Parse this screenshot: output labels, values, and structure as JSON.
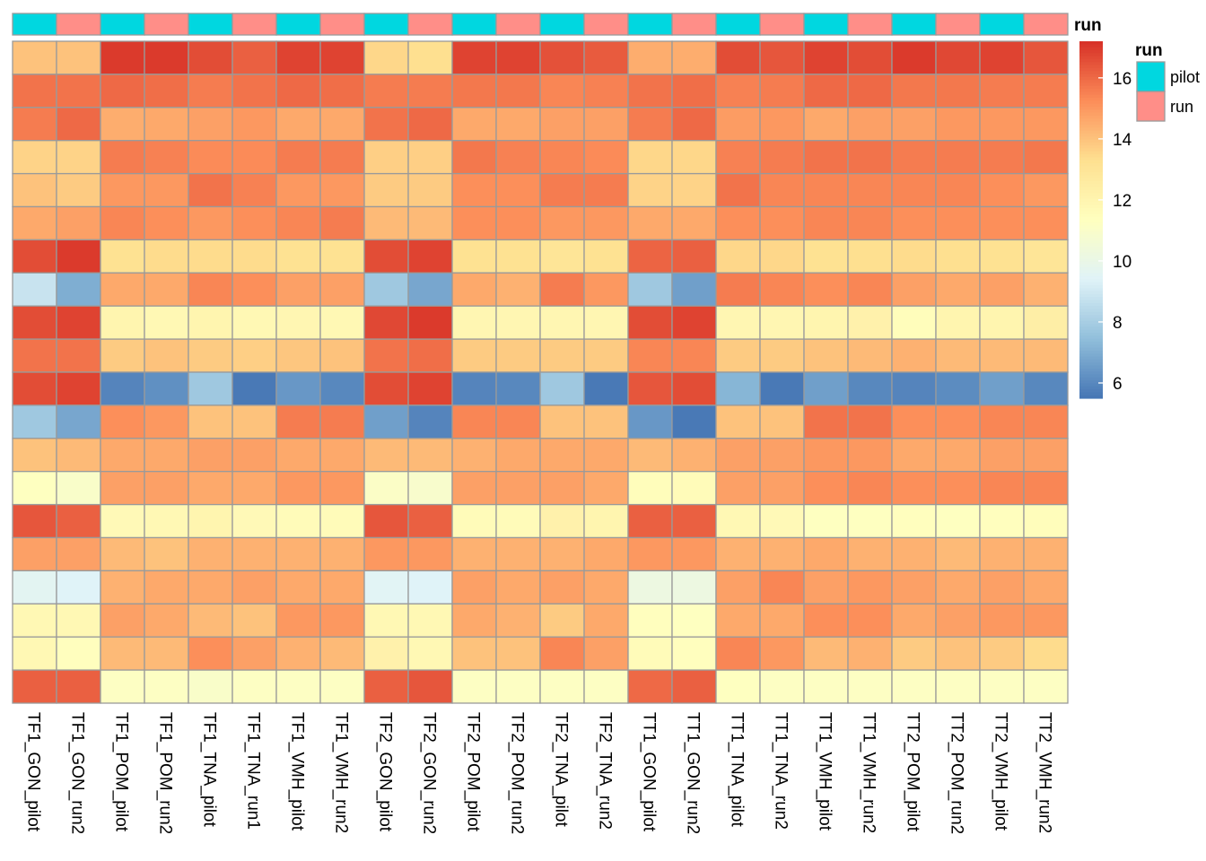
{
  "chart_data": {
    "type": "heatmap",
    "columns": [
      "TF1_GON_pilot",
      "TF1_GON_run2",
      "TF1_POM_pilot",
      "TF1_POM_run2",
      "TF1_TNA_pilot",
      "TF1_TNA_run1",
      "TF1_VMH_pilot",
      "TF1_VMH_run2",
      "TF2_GON_pilot",
      "TF2_GON_run2",
      "TF2_POM_pilot",
      "TF2_POM_run2",
      "TF2_TNA_pilot",
      "TF2_TNA_run2",
      "TT1_GON_pilot",
      "TT1_GON_run2",
      "TT1_TNA_pilot",
      "TT1_TNA_run2",
      "TT1_VMH_pilot",
      "TT1_VMH_run2",
      "TT2_POM_pilot",
      "TT2_POM_run2",
      "TT2_VMH_pilot",
      "TT2_VMH_run2"
    ],
    "column_annotation": {
      "name": "run",
      "values": [
        "pilot",
        "run",
        "pilot",
        "run",
        "pilot",
        "run",
        "pilot",
        "run",
        "pilot",
        "run",
        "pilot",
        "run",
        "pilot",
        "run",
        "pilot",
        "run",
        "pilot",
        "run",
        "pilot",
        "run",
        "pilot",
        "run",
        "pilot",
        "run"
      ],
      "legend": {
        "title": "run",
        "entries": [
          {
            "label": "pilot",
            "color": "#00D7E0"
          },
          {
            "label": "run",
            "color": "#FF8E88"
          }
        ]
      }
    },
    "matrix": [
      [
        14.0,
        14.0,
        17.0,
        17.0,
        16.6,
        16.2,
        16.8,
        16.8,
        13.5,
        13.3,
        16.8,
        16.8,
        16.5,
        16.3,
        14.5,
        14.5,
        16.6,
        16.4,
        16.8,
        16.6,
        17.0,
        16.7,
        16.8,
        16.4
      ],
      [
        15.8,
        15.8,
        16.0,
        15.9,
        15.6,
        15.8,
        16.0,
        15.9,
        15.6,
        15.6,
        15.7,
        15.7,
        15.4,
        15.5,
        15.8,
        15.9,
        15.5,
        15.6,
        16.0,
        16.0,
        15.7,
        15.7,
        15.6,
        15.6
      ],
      [
        15.6,
        16.0,
        14.5,
        14.6,
        14.8,
        15.0,
        14.6,
        14.6,
        15.8,
        16.0,
        14.6,
        14.6,
        14.8,
        14.8,
        15.6,
        16.0,
        14.9,
        15.0,
        14.6,
        14.8,
        14.8,
        15.0,
        15.0,
        15.0
      ],
      [
        13.6,
        13.6,
        15.6,
        15.5,
        15.3,
        15.3,
        15.6,
        15.6,
        13.7,
        13.7,
        15.7,
        15.5,
        15.4,
        15.3,
        13.5,
        13.5,
        15.5,
        15.6,
        15.8,
        15.8,
        15.6,
        15.6,
        15.6,
        15.7
      ],
      [
        14.0,
        13.8,
        15.0,
        15.0,
        15.8,
        15.5,
        15.0,
        15.0,
        13.8,
        13.8,
        15.2,
        15.2,
        15.6,
        15.6,
        13.6,
        13.6,
        15.8,
        15.4,
        15.4,
        15.4,
        15.4,
        15.4,
        15.2,
        15.0
      ],
      [
        14.6,
        14.8,
        15.4,
        15.2,
        15.0,
        15.2,
        15.4,
        15.6,
        14.2,
        14.2,
        15.2,
        15.2,
        15.0,
        15.0,
        14.6,
        14.6,
        15.2,
        15.2,
        15.4,
        15.4,
        15.2,
        15.2,
        15.2,
        15.2
      ],
      [
        16.6,
        17.0,
        13.2,
        13.4,
        13.4,
        13.4,
        13.2,
        13.2,
        16.6,
        16.8,
        13.2,
        13.2,
        13.0,
        13.2,
        16.1,
        16.2,
        13.5,
        13.5,
        13.2,
        13.3,
        13.4,
        13.3,
        13.2,
        13.0
      ],
      [
        8.8,
        7.0,
        14.6,
        14.6,
        15.4,
        15.2,
        14.8,
        14.8,
        7.8,
        6.8,
        14.6,
        14.4,
        15.6,
        15.0,
        7.8,
        6.6,
        15.6,
        15.4,
        15.2,
        15.4,
        14.8,
        14.6,
        14.8,
        14.4
      ],
      [
        16.6,
        16.8,
        12.0,
        11.8,
        12.0,
        11.8,
        11.9,
        11.8,
        16.7,
        17.0,
        11.9,
        11.9,
        11.9,
        11.9,
        16.6,
        16.8,
        11.9,
        11.9,
        12.0,
        12.2,
        11.5,
        12.0,
        12.0,
        12.4
      ],
      [
        15.8,
        15.8,
        13.8,
        14.0,
        13.8,
        13.7,
        13.9,
        14.0,
        15.8,
        15.9,
        13.8,
        13.8,
        13.8,
        13.8,
        15.4,
        15.4,
        13.8,
        13.8,
        14.0,
        14.2,
        14.4,
        14.2,
        14.2,
        14.2
      ],
      [
        16.6,
        16.8,
        5.9,
        6.2,
        7.8,
        5.6,
        6.4,
        6.0,
        16.6,
        16.8,
        5.9,
        6.0,
        7.8,
        5.6,
        16.4,
        16.6,
        7.2,
        5.6,
        6.6,
        6.0,
        5.9,
        6.1,
        6.6,
        6.0
      ],
      [
        7.8,
        6.8,
        15.2,
        15.0,
        14.0,
        14.0,
        15.6,
        15.6,
        6.6,
        5.9,
        15.4,
        15.4,
        14.0,
        14.0,
        6.4,
        5.6,
        14.0,
        14.0,
        15.8,
        15.8,
        15.2,
        15.2,
        15.4,
        15.4
      ],
      [
        14.0,
        14.2,
        14.6,
        14.6,
        14.8,
        14.8,
        14.6,
        14.6,
        14.2,
        14.2,
        14.4,
        14.6,
        14.6,
        14.6,
        14.2,
        14.4,
        14.8,
        14.8,
        15.0,
        15.0,
        14.6,
        14.6,
        14.8,
        14.8
      ],
      [
        11.3,
        11.0,
        14.8,
        14.8,
        14.6,
        14.6,
        15.0,
        15.0,
        11.1,
        10.9,
        14.8,
        14.8,
        14.8,
        14.6,
        11.5,
        11.6,
        14.8,
        14.8,
        15.2,
        15.4,
        15.2,
        15.2,
        15.4,
        15.4
      ],
      [
        16.4,
        16.2,
        11.7,
        11.8,
        12.0,
        11.7,
        11.6,
        11.6,
        16.4,
        16.2,
        11.6,
        11.6,
        12.2,
        12.0,
        16.2,
        16.2,
        11.8,
        11.7,
        11.3,
        11.3,
        11.4,
        11.3,
        11.4,
        11.5
      ],
      [
        14.8,
        14.8,
        14.2,
        14.0,
        14.4,
        14.4,
        14.4,
        14.4,
        15.0,
        15.0,
        14.4,
        14.4,
        14.4,
        14.6,
        15.0,
        15.0,
        14.4,
        14.4,
        14.6,
        14.4,
        14.4,
        14.2,
        14.4,
        14.4
      ],
      [
        9.6,
        9.4,
        14.4,
        14.6,
        14.6,
        14.8,
        14.6,
        14.6,
        9.5,
        9.4,
        14.8,
        14.6,
        14.8,
        14.6,
        10.2,
        10.2,
        14.8,
        15.4,
        14.8,
        15.0,
        14.8,
        14.6,
        14.8,
        14.6
      ],
      [
        11.8,
        11.8,
        14.8,
        14.6,
        14.2,
        14.0,
        15.0,
        15.0,
        11.8,
        11.8,
        14.6,
        14.4,
        13.8,
        14.6,
        11.4,
        11.3,
        14.6,
        14.6,
        15.2,
        15.2,
        14.6,
        14.8,
        15.0,
        15.0
      ],
      [
        11.8,
        11.4,
        14.2,
        14.2,
        15.2,
        14.8,
        14.4,
        14.2,
        12.2,
        11.8,
        14.0,
        14.0,
        15.4,
        14.8,
        11.6,
        11.4,
        15.4,
        15.0,
        14.2,
        14.4,
        13.8,
        14.0,
        13.8,
        13.4
      ],
      [
        16.2,
        16.2,
        11.2,
        11.2,
        11.0,
        11.2,
        11.2,
        11.2,
        16.2,
        16.4,
        11.2,
        11.2,
        11.2,
        11.2,
        16.0,
        16.2,
        11.3,
        11.2,
        11.2,
        11.2,
        11.2,
        11.2,
        11.2,
        11.2
      ]
    ],
    "color_scale": {
      "min": 5.5,
      "max": 17.2,
      "colors": [
        "#4575B4",
        "#91BFDB",
        "#E0F3F8",
        "#FFFFBF",
        "#FEE090",
        "#FC8D59",
        "#D73027"
      ],
      "ticks": [
        6,
        8,
        10,
        12,
        14,
        16
      ]
    },
    "legend_title": "run"
  }
}
